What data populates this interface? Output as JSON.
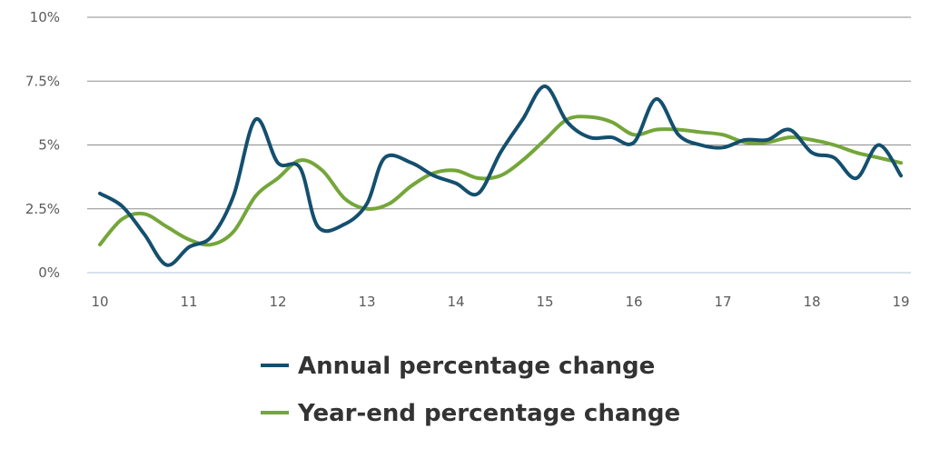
{
  "chart_data": {
    "type": "line",
    "x_ticks": [
      "10",
      "11",
      "12",
      "13",
      "14",
      "15",
      "16",
      "17",
      "18",
      "19"
    ],
    "y_ticks": [
      "0%",
      "2.5%",
      "5%",
      "7.5%",
      "10%"
    ],
    "y_tick_values": [
      0,
      2.5,
      5,
      7.5,
      10
    ],
    "xlim": [
      10,
      19
    ],
    "ylim": [
      0,
      10
    ],
    "grid": true,
    "legend_position": "bottom",
    "series": [
      {
        "name": "Annual percentage change",
        "color": "#144f6e",
        "x": [
          10,
          10.25,
          10.5,
          10.75,
          11,
          11.25,
          11.5,
          11.75,
          12,
          12.25,
          12.45,
          12.75,
          13,
          13.2,
          13.5,
          13.75,
          14,
          14.25,
          14.5,
          14.75,
          15,
          15.25,
          15.5,
          15.75,
          16,
          16.25,
          16.5,
          16.75,
          17,
          17.25,
          17.5,
          17.75,
          18,
          18.25,
          18.5,
          18.75,
          19
        ],
        "y": [
          3.1,
          2.6,
          1.5,
          0.3,
          1.0,
          1.4,
          3.0,
          6.0,
          4.3,
          4.1,
          1.8,
          1.9,
          2.7,
          4.5,
          4.3,
          3.8,
          3.5,
          3.1,
          4.7,
          6.0,
          7.3,
          5.9,
          5.3,
          5.3,
          5.1,
          6.8,
          5.4,
          5.0,
          4.9,
          5.2,
          5.2,
          5.6,
          4.7,
          4.5,
          3.7,
          5.0,
          3.8
        ]
      },
      {
        "name": "Year-end percentage change",
        "color": "#74a63a",
        "x": [
          10,
          10.25,
          10.5,
          10.75,
          11,
          11.25,
          11.5,
          11.75,
          12,
          12.25,
          12.5,
          12.75,
          13,
          13.25,
          13.5,
          13.75,
          14,
          14.25,
          14.5,
          14.75,
          15,
          15.25,
          15.5,
          15.75,
          16,
          16.25,
          16.5,
          16.75,
          17,
          17.25,
          17.5,
          17.75,
          18,
          18.25,
          18.5,
          18.75,
          19
        ],
        "y": [
          1.1,
          2.1,
          2.3,
          1.8,
          1.3,
          1.1,
          1.6,
          3.0,
          3.7,
          4.4,
          4.0,
          2.9,
          2.5,
          2.7,
          3.4,
          3.9,
          4.0,
          3.7,
          3.8,
          4.4,
          5.2,
          6.0,
          6.1,
          5.9,
          5.4,
          5.6,
          5.6,
          5.5,
          5.4,
          5.1,
          5.1,
          5.3,
          5.2,
          5.0,
          4.7,
          4.5,
          4.3
        ]
      }
    ]
  }
}
